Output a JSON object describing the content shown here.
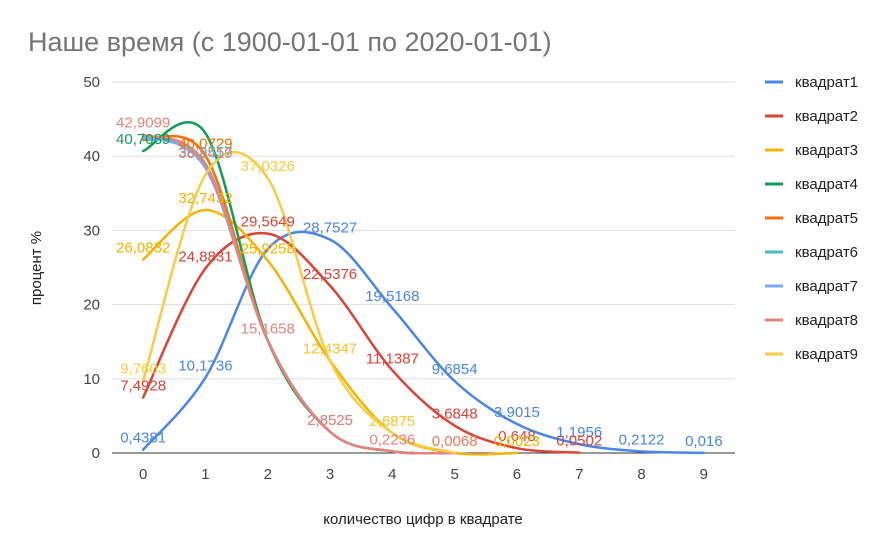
{
  "chart_data": {
    "type": "line",
    "title": "Наше время (с 1900-01-01 по 2020-01-01)",
    "xlabel": "количество цифр в квадрате",
    "ylabel": "процент %",
    "ylim": [
      0,
      50
    ],
    "xlim": [
      -0.5,
      9.5
    ],
    "x_ticks": [
      0,
      1,
      2,
      3,
      4,
      5,
      6,
      7,
      8,
      9
    ],
    "y_ticks": [
      0,
      10,
      20,
      30,
      40,
      50
    ],
    "grid": true,
    "legend_position": "right",
    "smooth": true,
    "series": [
      {
        "name": "квадрат1",
        "color": "#4a86e8",
        "x": [
          0,
          1,
          2,
          3,
          4,
          5,
          6,
          7,
          8,
          9
        ],
        "values": [
          0.4381,
          10.1736,
          27.5,
          28.7527,
          19.5168,
          9.6854,
          3.9015,
          1.1956,
          0.2122,
          0.016
        ],
        "labels": [
          "0,4381",
          "10,1736",
          "",
          "28,7527",
          "19,5168",
          "9,6854",
          "3,9015",
          "1,1956",
          "0,2122",
          "0,016"
        ]
      },
      {
        "name": "квадрат2",
        "color": "#db4437",
        "x": [
          0,
          1,
          2,
          3,
          4,
          5,
          6,
          7
        ],
        "values": [
          7.4928,
          24.8831,
          29.5649,
          22.5376,
          11.1387,
          3.6848,
          0.648,
          0.0502
        ],
        "labels": [
          "7,4928",
          "24,8831",
          "29,5649",
          "22,5376",
          "11,1387",
          "3,6848",
          "0,648",
          "0,0502"
        ]
      },
      {
        "name": "квадрат3",
        "color": "#f4b400",
        "x": [
          0,
          1,
          2,
          3,
          4,
          5,
          6
        ],
        "values": [
          26.0832,
          32.7432,
          25.9258,
          12.4347,
          2.6875,
          0.0068,
          0.0023
        ],
        "labels": [
          "26,0832",
          "32,7432",
          "25,9258",
          "12,4347",
          "2,6875",
          "0,0068",
          "0,0023"
        ]
      },
      {
        "name": "квадрат4",
        "color": "#0f9d58",
        "x": [
          0,
          1,
          2,
          3,
          4,
          5
        ],
        "values": [
          40.7089,
          43.1,
          15.1658,
          2.8525,
          0.2236,
          0.0068
        ],
        "labels": [
          "40,7089",
          "",
          "",
          "",
          "",
          ""
        ]
      },
      {
        "name": "квадрат5",
        "color": "#ff6d00",
        "x": [
          0,
          1,
          2,
          3,
          4,
          5
        ],
        "values": [
          42.2,
          40.0729,
          15.1658,
          2.8525,
          0.2236,
          0.0068
        ],
        "labels": [
          "",
          "40,0729",
          "",
          "",
          "",
          ""
        ]
      },
      {
        "name": "квадрат6",
        "color": "#46bdc6",
        "x": [
          0,
          1,
          2,
          3,
          4,
          5
        ],
        "values": [
          42.4,
          38.9557,
          15.1658,
          2.8525,
          0.2236,
          0.0068
        ],
        "labels": [
          "",
          "38,9557",
          "",
          "",
          "",
          ""
        ]
      },
      {
        "name": "квадрат7",
        "color": "#7baaf7",
        "x": [
          0,
          1,
          2,
          3,
          4,
          5
        ],
        "values": [
          42.6,
          38.4,
          15.1658,
          2.8525,
          0.2236,
          0.0068
        ],
        "labels": [
          "",
          "",
          "",
          "2,8525",
          "",
          ""
        ]
      },
      {
        "name": "квадрат8",
        "color": "#e8837a",
        "x": [
          0,
          1,
          2,
          3,
          4,
          5
        ],
        "values": [
          42.9099,
          38.8419,
          15.1658,
          2.8525,
          0.2236,
          0.0068
        ],
        "labels": [
          "42,9099",
          "38,8419",
          "15,1658",
          "2,8525",
          "0,2236",
          "0,0068"
        ]
      },
      {
        "name": "квадрат9",
        "color": "#fbcb43",
        "x": [
          0,
          1,
          2,
          3,
          4,
          5
        ],
        "values": [
          9.7603,
          37.5,
          37.0326,
          12.4347,
          2.6875,
          0.0068
        ],
        "labels": [
          "9,7603",
          "",
          "37,0326",
          "12,4347",
          "2,6875",
          ""
        ]
      }
    ]
  }
}
